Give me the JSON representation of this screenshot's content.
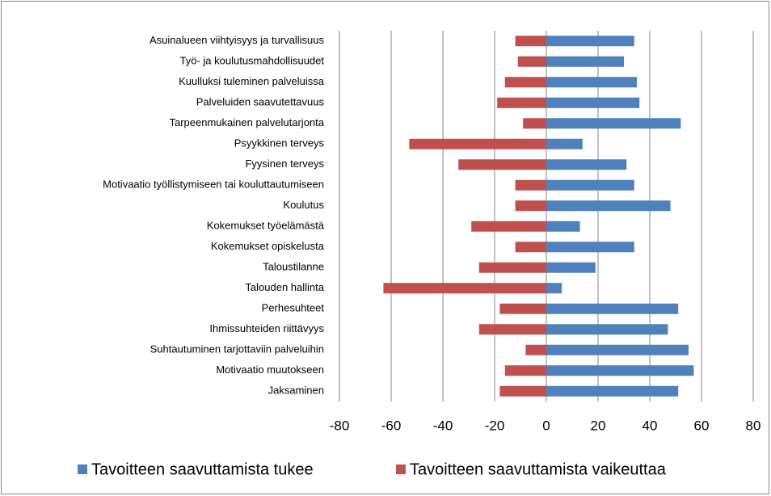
{
  "chart_data": {
    "type": "bar",
    "orientation": "horizontal",
    "categories": [
      "Asuinalueen viihtyisyys ja turvallisuus",
      "Työ- ja koulutusmahdollisuudet",
      "Kuulluksi tuleminen palveluissa",
      "Palveluiden saavutettavuus",
      "Tarpeenmukainen palvelutarjonta",
      "Psyykkinen terveys",
      "Fyysinen terveys",
      "Motivaatio työllistymiseen tai kouluttautumiseen",
      "Koulutus",
      "Kokemukset työelämästä",
      "Kokemukset opiskelusta",
      "Taloustilanne",
      "Talouden hallinta",
      "Perhesuhteet",
      "Ihmissuhteiden riittävyys",
      "Suhtautuminen tarjottaviin palveluihin",
      "Motivaatio muutokseen",
      "Jaksaminen"
    ],
    "series": [
      {
        "name": "Tavoitteen saavuttamista tukee",
        "color": "#4f81bd",
        "values": [
          34,
          30,
          35,
          36,
          52,
          14,
          31,
          34,
          48,
          13,
          34,
          19,
          6,
          51,
          47,
          55,
          57,
          51
        ]
      },
      {
        "name": "Tavoitteen saavuttamista vaikeuttaa",
        "color": "#c0504d",
        "values": [
          -12,
          -11,
          -16,
          -19,
          -9,
          -53,
          -34,
          -12,
          -12,
          -29,
          -12,
          -26,
          -63,
          -18,
          -26,
          -8,
          -16,
          -18
        ]
      }
    ],
    "xlim": [
      -80,
      80
    ],
    "xticks": [
      -80,
      -60,
      -40,
      -20,
      0,
      20,
      40,
      60,
      80
    ],
    "grid": true,
    "legend": "bottom"
  }
}
